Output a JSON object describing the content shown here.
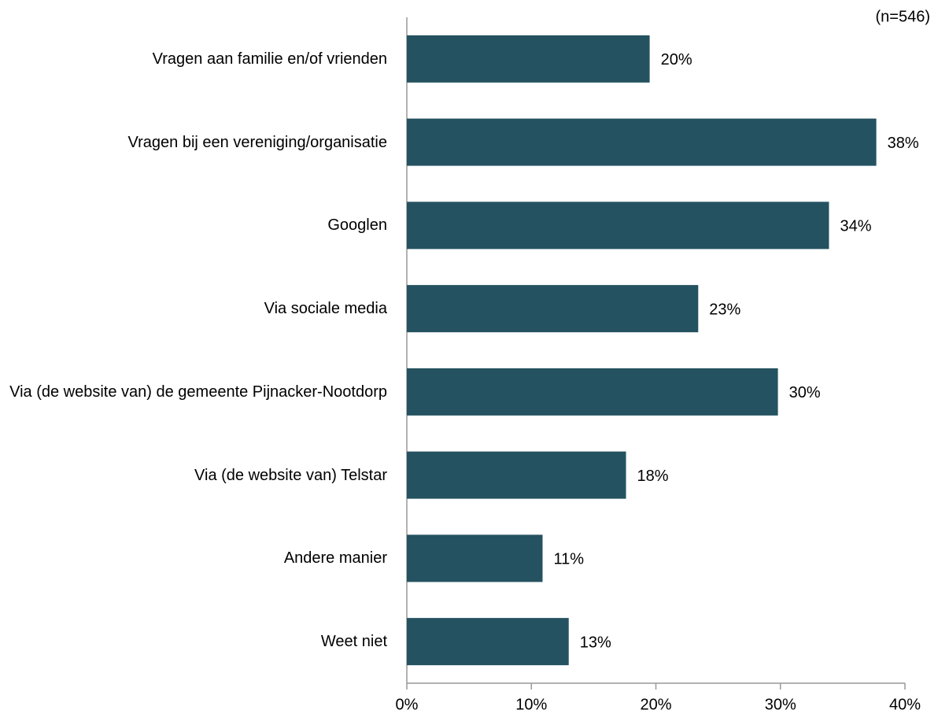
{
  "chart_data": {
    "type": "bar",
    "orientation": "horizontal",
    "annotation": "(n=546)",
    "categories": [
      "Vragen aan familie en/of vrienden",
      "Vragen bij een vereniging/organisatie",
      "Googlen",
      "Via sociale media",
      "Via (de website van) de gemeente Pijnacker-Nootdorp",
      "Via (de website van) Telstar",
      "Andere manier",
      "Weet niet"
    ],
    "values": [
      19.5,
      37.7,
      33.9,
      23.4,
      29.8,
      17.6,
      10.9,
      13.0
    ],
    "value_labels": [
      "20%",
      "38%",
      "34%",
      "23%",
      "30%",
      "18%",
      "11%",
      "13%"
    ],
    "color": "#245260",
    "xlim": [
      0,
      40
    ],
    "xticks": [
      {
        "value": 0,
        "label": "0%"
      },
      {
        "value": 10,
        "label": "10%"
      },
      {
        "value": 20,
        "label": "20%"
      },
      {
        "value": 30,
        "label": "30%"
      },
      {
        "value": 40,
        "label": "40%"
      }
    ]
  }
}
